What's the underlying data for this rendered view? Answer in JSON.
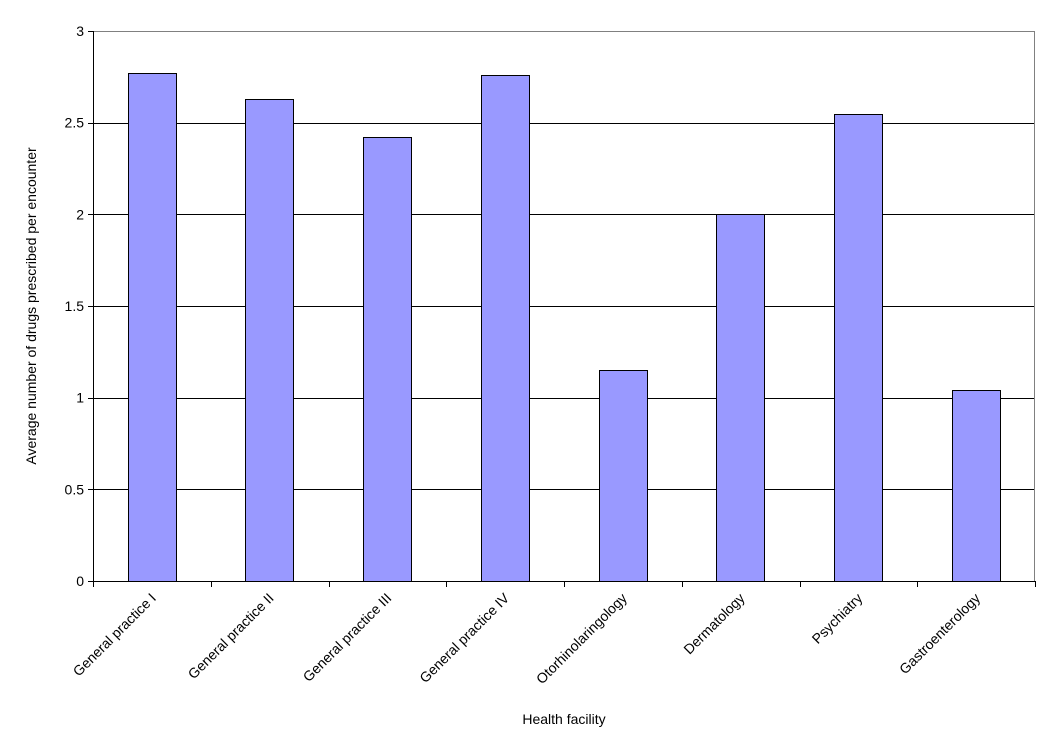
{
  "chart_data": {
    "type": "bar",
    "title": "",
    "xlabel": "Health facility",
    "ylabel": "Average number of drugs prescribed per encounter",
    "categories": [
      "General practice I",
      "General practice II",
      "General practice III",
      "General practice IV",
      "Otorhinolaringology",
      "Dermatology",
      "Psychiatry",
      "Gastroenterology"
    ],
    "values": [
      2.77,
      2.63,
      2.42,
      2.76,
      1.15,
      2.0,
      2.55,
      1.04
    ],
    "ylim": [
      0,
      3
    ],
    "yticks": [
      "0",
      "0.5",
      "1",
      "1.5",
      "2",
      "2.5",
      "3"
    ],
    "grid": true,
    "legend": "none",
    "colors": {
      "bar": "#9999ff",
      "bar_stroke": "#000000",
      "grid": "#000000",
      "plot_border": "#808080"
    }
  }
}
